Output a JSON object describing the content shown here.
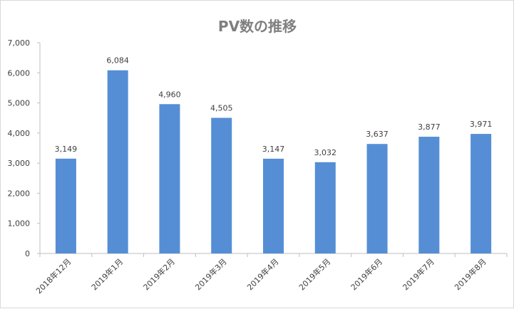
{
  "chart_data": {
    "type": "bar",
    "title": "PV数の推移",
    "categories": [
      "2018年12月",
      "2019年1月",
      "2019年2月",
      "2019年3月",
      "2019年4月",
      "2019年5月",
      "2019年6月",
      "2019年7月",
      "2019年8月"
    ],
    "values": [
      3149,
      6084,
      4960,
      4505,
      3147,
      3032,
      3637,
      3877,
      3971
    ],
    "data_labels": [
      "3,149",
      "6,084",
      "4,960",
      "4,505",
      "3,147",
      "3,032",
      "3,637",
      "3,877",
      "3,971"
    ],
    "y_ticks": [
      "0",
      "1,000",
      "2,000",
      "3,000",
      "4,000",
      "5,000",
      "6,000",
      "7,000"
    ],
    "ylim": [
      0,
      7000
    ],
    "grid": false,
    "legend": "none",
    "bar_color": "#558ed5"
  }
}
